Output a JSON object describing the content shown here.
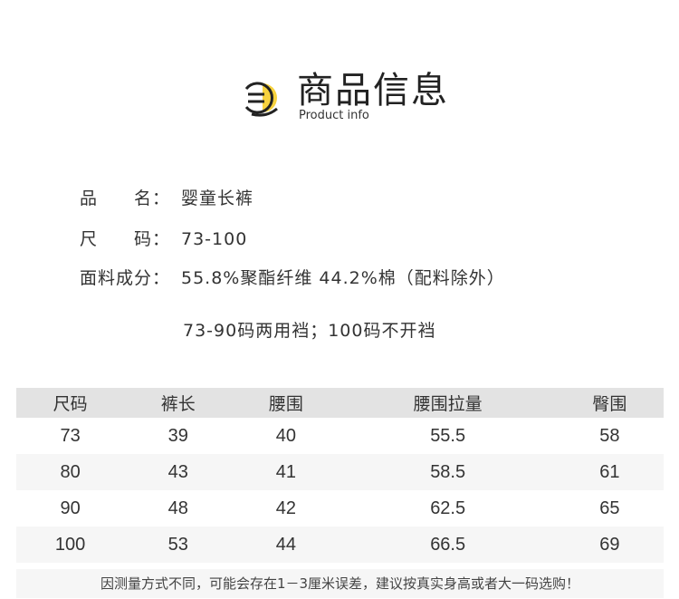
{
  "header": {
    "title": "商品信息",
    "subtitle": "Product info",
    "icon": "document-list-icon",
    "accent": "#f7d23e"
  },
  "info": [
    {
      "label": "品　　名：",
      "value": "婴童长裤"
    },
    {
      "label": "尺　　码：",
      "value": "73-100"
    },
    {
      "label": "面料成分：",
      "value": "55.8%聚酯纤维 44.2%棉（配料除外）"
    }
  ],
  "note": "73-90码两用裆；100码不开裆",
  "table": {
    "headers": [
      "尺码",
      "裤长",
      "腰围",
      "腰围拉量",
      "臀围"
    ],
    "rows": [
      [
        "73",
        "39",
        "40",
        "55.5",
        "58"
      ],
      [
        "80",
        "43",
        "41",
        "58.5",
        "61"
      ],
      [
        "90",
        "48",
        "42",
        "62.5",
        "65"
      ],
      [
        "100",
        "53",
        "44",
        "66.5",
        "69"
      ]
    ]
  },
  "footnote": "因测量方式不同，可能会存在1－3厘米误差，建议按真实身高或者大一码选购！"
}
